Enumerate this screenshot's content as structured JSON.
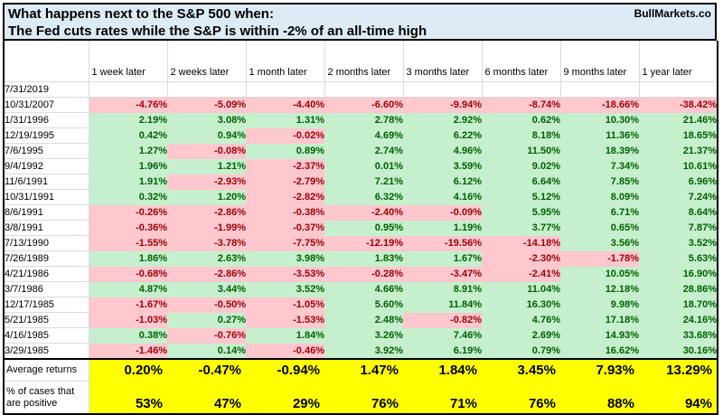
{
  "title": {
    "line1": "What happens next to the S&P 500 when:",
    "line2": "The Fed cuts rates while the S&P is within -2% of an all-time high",
    "brand": "BullMarkets.co"
  },
  "chart_data": {
    "type": "table",
    "title": "What happens next to the S&P 500 when: The Fed cuts rates while the S&P is within -2% of an all-time high",
    "columns": [
      "1 week later",
      "2 weeks later",
      "1 month later",
      "2 months later",
      "3 months later",
      "6 months later",
      "9 months later",
      "1 year later"
    ],
    "rows": [
      {
        "date": "7/31/2019",
        "values": [
          "",
          "",
          "",
          "",
          "",
          "",
          "",
          ""
        ]
      },
      {
        "date": "10/31/2007",
        "values": [
          "-4.76%",
          "-5.09%",
          "-4.40%",
          "-6.60%",
          "-9.94%",
          "-8.74%",
          "-18.66%",
          "-38.42%"
        ]
      },
      {
        "date": "1/31/1996",
        "values": [
          "2.19%",
          "3.08%",
          "1.31%",
          "2.78%",
          "2.92%",
          "0.62%",
          "10.30%",
          "21.46%"
        ]
      },
      {
        "date": "12/19/1995",
        "values": [
          "0.42%",
          "0.94%",
          "-0.02%",
          "4.69%",
          "6.22%",
          "8.18%",
          "11.36%",
          "18.65%"
        ]
      },
      {
        "date": "7/6/1995",
        "values": [
          "1.27%",
          "-0.08%",
          "0.89%",
          "2.74%",
          "4.96%",
          "11.50%",
          "18.39%",
          "21.37%"
        ]
      },
      {
        "date": "9/4/1992",
        "values": [
          "1.96%",
          "1.21%",
          "-2.37%",
          "0.01%",
          "3.59%",
          "9.02%",
          "7.34%",
          "10.61%"
        ]
      },
      {
        "date": "11/6/1991",
        "values": [
          "1.91%",
          "-2.93%",
          "-2.79%",
          "7.21%",
          "6.12%",
          "6.64%",
          "7.85%",
          "6.96%"
        ]
      },
      {
        "date": "10/31/1991",
        "values": [
          "0.32%",
          "1.20%",
          "-2.82%",
          "6.32%",
          "4.16%",
          "5.12%",
          "8.09%",
          "7.24%"
        ]
      },
      {
        "date": "8/6/1991",
        "values": [
          "-0.26%",
          "-2.86%",
          "-0.38%",
          "-2.40%",
          "-0.09%",
          "5.95%",
          "6.71%",
          "8.64%"
        ]
      },
      {
        "date": "3/8/1991",
        "values": [
          "-0.36%",
          "-1.99%",
          "-0.37%",
          "0.95%",
          "1.19%",
          "3.77%",
          "0.65%",
          "7.87%"
        ]
      },
      {
        "date": "7/13/1990",
        "values": [
          "-1.55%",
          "-3.78%",
          "-7.75%",
          "-12.19%",
          "-19.56%",
          "-14.18%",
          "3.56%",
          "3.52%"
        ]
      },
      {
        "date": "7/26/1989",
        "values": [
          "1.86%",
          "2.63%",
          "3.98%",
          "1.83%",
          "1.67%",
          "-2.30%",
          "-1.78%",
          "5.63%"
        ]
      },
      {
        "date": "4/21/1986",
        "values": [
          "-0.68%",
          "-2.86%",
          "-3.53%",
          "-0.28%",
          "-3.47%",
          "-2.41%",
          "10.05%",
          "16.90%"
        ]
      },
      {
        "date": "3/7/1986",
        "values": [
          "4.87%",
          "3.44%",
          "3.52%",
          "4.66%",
          "8.91%",
          "11.04%",
          "12.18%",
          "28.86%"
        ]
      },
      {
        "date": "12/17/1985",
        "values": [
          "-1.67%",
          "-0.50%",
          "-1.05%",
          "5.60%",
          "11.84%",
          "16.30%",
          "9.98%",
          "18.70%"
        ]
      },
      {
        "date": "5/21/1985",
        "values": [
          "-1.03%",
          "0.27%",
          "-1.53%",
          "2.48%",
          "-0.82%",
          "4.76%",
          "17.18%",
          "24.16%"
        ]
      },
      {
        "date": "4/16/1985",
        "values": [
          "0.38%",
          "-0.76%",
          "1.84%",
          "3.26%",
          "7.46%",
          "2.69%",
          "14.93%",
          "33.68%"
        ]
      },
      {
        "date": "3/29/1985",
        "values": [
          "-1.46%",
          "0.14%",
          "-0.46%",
          "3.92%",
          "6.19%",
          "0.79%",
          "16.62%",
          "30.16%"
        ]
      }
    ],
    "summary": {
      "average_label": "Average returns",
      "average": [
        "0.20%",
        "-0.47%",
        "-0.94%",
        "1.47%",
        "1.84%",
        "3.45%",
        "7.93%",
        "13.29%"
      ],
      "percent_positive_label": "% of cases that are positive",
      "percent_positive": [
        "53%",
        "47%",
        "29%",
        "76%",
        "71%",
        "76%",
        "88%",
        "94%"
      ]
    },
    "colors": {
      "positive_bg": "#c6efce",
      "positive_text": "#006100",
      "negative_bg": "#ffc7ce",
      "negative_text": "#9c0006",
      "summary_bg": "#ffff00",
      "title_bg": "#ddebf7"
    },
    "legend_position": "none",
    "grid": true
  }
}
